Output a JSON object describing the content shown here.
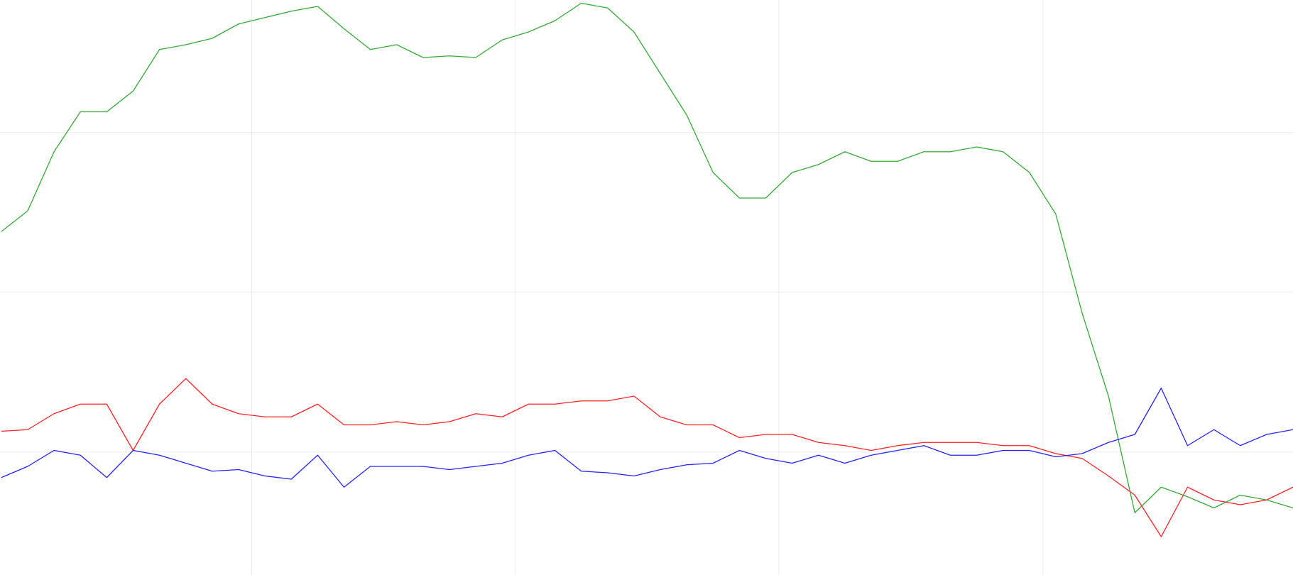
{
  "chart_data": {
    "type": "line",
    "x": [
      5,
      15,
      25,
      35,
      45,
      55,
      65,
      75,
      85,
      95,
      105,
      115,
      125,
      135,
      145,
      155,
      165,
      175,
      185,
      195,
      205,
      215,
      225,
      235,
      245,
      255,
      265,
      275,
      285,
      295,
      305,
      315,
      325,
      335,
      345,
      355,
      365,
      375,
      385,
      395,
      405,
      415,
      425,
      435,
      445,
      455,
      465,
      475,
      485,
      495
    ],
    "series": [
      {
        "color": "#33aa33",
        "values": [
          1.38,
          1.51,
          1.88,
          2.13,
          2.13,
          2.26,
          2.52,
          2.55,
          2.59,
          2.68,
          2.72,
          2.76,
          2.79,
          2.65,
          2.52,
          2.55,
          2.47,
          2.48,
          2.47,
          2.58,
          2.63,
          2.7,
          2.81,
          2.78,
          2.63,
          2.37,
          2.11,
          1.75,
          1.59,
          1.59,
          1.75,
          1.8,
          1.88,
          1.82,
          1.82,
          1.88,
          1.88,
          1.91,
          1.88,
          1.75,
          1.49,
          0.87,
          0.35,
          -0.38,
          -0.22,
          -0.28,
          -0.35,
          -0.27,
          -0.3,
          -0.35
        ]
      },
      {
        "color": "#ff2222",
        "values": [
          0.13,
          0.14,
          0.24,
          0.3,
          0.3,
          0.01,
          0.3,
          0.46,
          0.3,
          0.24,
          0.22,
          0.22,
          0.3,
          0.17,
          0.17,
          0.19,
          0.17,
          0.19,
          0.24,
          0.22,
          0.3,
          0.3,
          0.32,
          0.32,
          0.35,
          0.22,
          0.17,
          0.17,
          0.09,
          0.11,
          0.11,
          0.06,
          0.04,
          0.01,
          0.04,
          0.06,
          0.06,
          0.06,
          0.04,
          0.04,
          -0.01,
          -0.04,
          -0.15,
          -0.27,
          -0.53,
          -0.22,
          -0.3,
          -0.33,
          -0.3,
          -0.22
        ]
      },
      {
        "color": "#2222ff",
        "values": [
          -0.16,
          -0.09,
          0.01,
          -0.02,
          -0.16,
          0.01,
          -0.02,
          -0.07,
          -0.12,
          -0.11,
          -0.15,
          -0.17,
          -0.02,
          -0.22,
          -0.09,
          -0.09,
          -0.09,
          -0.11,
          -0.09,
          -0.07,
          -0.02,
          0.01,
          -0.12,
          -0.13,
          -0.15,
          -0.11,
          -0.08,
          -0.07,
          0.01,
          -0.04,
          -0.07,
          -0.02,
          -0.07,
          -0.02,
          0.01,
          0.04,
          -0.02,
          -0.02,
          0.01,
          0.01,
          -0.03,
          -0.01,
          0.06,
          0.11,
          0.4,
          0.04,
          0.14,
          0.04,
          0.11,
          0.14
        ]
      }
    ],
    "xlim": [
      4.5,
      495
    ],
    "xticks": [
      100,
      200,
      300,
      400
    ],
    "ylim": [
      -0.77,
      2.83
    ],
    "yticks": [
      0,
      1,
      2
    ],
    "grid": true
  }
}
